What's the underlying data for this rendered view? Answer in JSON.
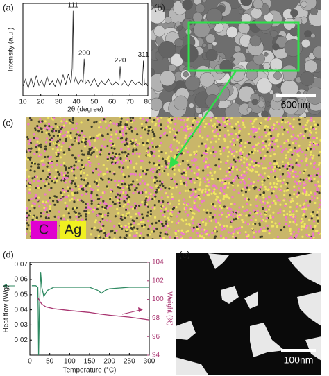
{
  "figure": {
    "panel_labels": [
      "(a)",
      "(b)",
      "(c)",
      "(d)",
      "(e)"
    ],
    "b_scale_bar": "600nm",
    "c_elements": [
      "C",
      "Ag"
    ],
    "e_scale_bar": "100nm"
  },
  "chart_data": [
    {
      "type": "line",
      "xlabel": "2θ (degree)",
      "ylabel": "Intensity (a.u.)",
      "xlim": [
        10,
        80
      ],
      "xticks": [
        10,
        20,
        30,
        40,
        50,
        60,
        70,
        80
      ],
      "ylim": [
        0,
        100
      ],
      "color": "#111111",
      "x": [
        10,
        11.5,
        13,
        14.5,
        16,
        17.5,
        19,
        20.5,
        22,
        23.5,
        25,
        26.5,
        28,
        29.5,
        31,
        32.5,
        34,
        35.5,
        37,
        37.6,
        38.1,
        38.6,
        39.5,
        41,
        42.5,
        43.7,
        44.3,
        45,
        46.5,
        48,
        50,
        52,
        54,
        56,
        58,
        60,
        62,
        63.8,
        64.5,
        65.2,
        67,
        69,
        71,
        73,
        75,
        76.9,
        77.5,
        78.1,
        79,
        80
      ],
      "values": [
        10,
        18,
        8,
        20,
        9,
        22,
        11,
        17,
        9,
        21,
        12,
        16,
        10,
        19,
        11,
        23,
        12,
        24,
        13,
        30,
        92,
        14,
        20,
        12,
        18,
        14,
        40,
        13,
        17,
        11,
        19,
        10,
        16,
        12,
        18,
        11,
        15,
        12,
        32,
        11,
        16,
        10,
        17,
        12,
        15,
        11,
        38,
        12,
        14,
        10
      ],
      "annotations": [
        {
          "text": "111",
          "x": 38.1,
          "y": 92
        },
        {
          "text": "200",
          "x": 44.3,
          "y": 40
        },
        {
          "text": "220",
          "x": 64.5,
          "y": 32
        },
        {
          "text": "311",
          "x": 77.5,
          "y": 38
        }
      ]
    },
    {
      "type": "line",
      "xlabel": "Temperature (°C)",
      "ylabel": "Heat flow (W/g)",
      "y2label": "Weight (%)",
      "xlim": [
        0,
        300
      ],
      "xticks": [
        0,
        50,
        100,
        150,
        200,
        250,
        300
      ],
      "ylim": [
        0.01,
        0.0715
      ],
      "yticks": [
        0.02,
        0.03,
        0.04,
        0.05,
        0.06,
        0.07
      ],
      "y2lim": [
        94,
        104
      ],
      "y2ticks": [
        94,
        96,
        98,
        100,
        102,
        104
      ],
      "series": [
        {
          "color": "#2f8a62",
          "x": [
            5,
            15,
            20,
            21,
            22,
            24,
            27,
            30,
            35,
            45,
            60,
            100,
            150,
            170,
            180,
            190,
            200,
            250,
            300
          ],
          "values": [
            0.056,
            0.056,
            0.055,
            0.04,
            0.01,
            0.04,
            0.065,
            0.055,
            0.049,
            0.053,
            0.055,
            0.055,
            0.055,
            0.053,
            0.051,
            0.053,
            0.054,
            0.055,
            0.055
          ]
        },
        {
          "color": "#a8336f",
          "axis": "y2",
          "x": [
            20,
            25,
            30,
            40,
            60,
            100,
            150,
            180,
            200,
            250,
            300
          ],
          "values": [
            100.2,
            99.8,
            99.5,
            99.2,
            99,
            98.8,
            98.6,
            98.4,
            98.3,
            98.1,
            97.8
          ]
        }
      ]
    }
  ]
}
